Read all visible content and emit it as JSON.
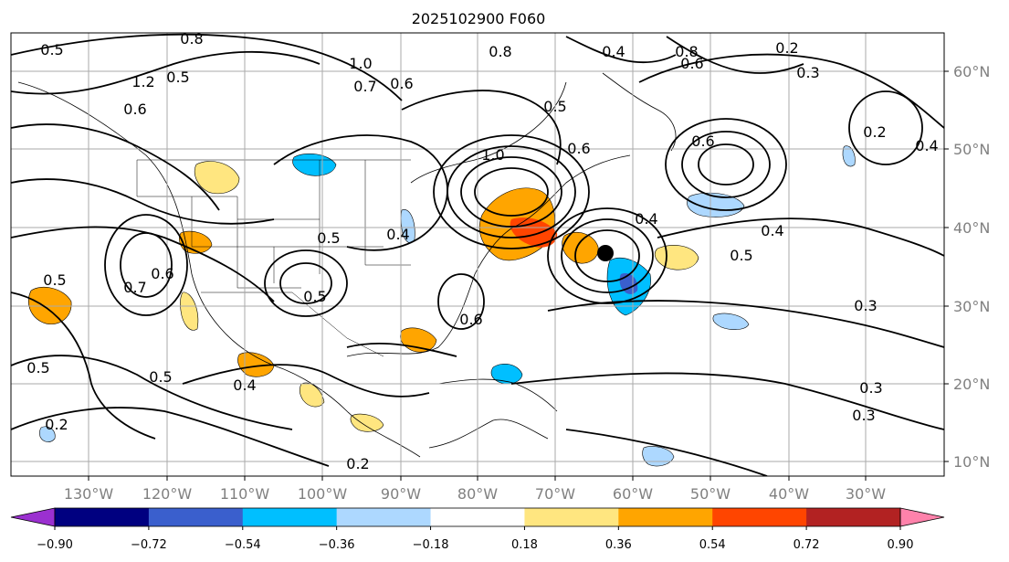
{
  "title": "2025102900 F060",
  "lon_labels": [
    "130°W",
    "120°W",
    "110°W",
    "100°W",
    "90°W",
    "80°W",
    "70°W",
    "60°W",
    "50°W",
    "40°W",
    "30°W"
  ],
  "lat_labels": [
    "60°N",
    "50°N",
    "40°N",
    "30°N",
    "20°N",
    "10°N"
  ],
  "colorbar": {
    "colors": [
      "#9b30d0",
      "#000080",
      "#3a5fcd",
      "#00bfff",
      "#add8ff",
      "#ffffff",
      "#ffe680",
      "#ffa500",
      "#ff4500",
      "#b22222",
      "#ff82ab"
    ],
    "tick_labels": [
      "−0.90",
      "−0.72",
      "−0.54",
      "−0.36",
      "−0.18",
      "0.18",
      "0.36",
      "0.54",
      "0.72",
      "0.90"
    ]
  },
  "contour_labels": [
    "0.5",
    "0.8",
    "1.2",
    "1.0",
    "0.7",
    "0.6",
    "0.5",
    "0.8",
    "0.4",
    "0.8",
    "0.6",
    "0.2",
    "0.3",
    "0.5",
    "0.6",
    "0.2",
    "0.4",
    "0.6",
    "1.0",
    "0.4",
    "0.5",
    "0.4",
    "0.6",
    "0.5",
    "0.4",
    "0.5",
    "0.7",
    "0.6",
    "0.3",
    "0.5",
    "0.6",
    "0.3",
    "0.3",
    "0.2",
    "0.5",
    "0.5",
    "0.4",
    "0.2"
  ],
  "colors": {
    "contour": "#000000",
    "grid": "#aaaaaa",
    "coast": "#000000",
    "axis_text": "#808080"
  }
}
